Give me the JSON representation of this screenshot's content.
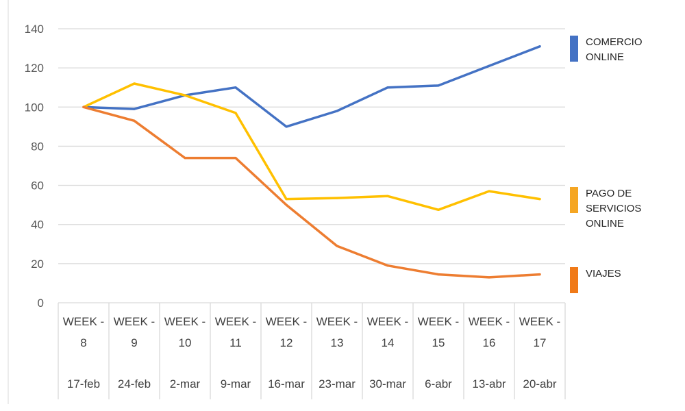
{
  "chart_data": {
    "type": "line",
    "categories": [
      [
        "WEEK -",
        "8",
        "17-feb"
      ],
      [
        "WEEK -",
        "9",
        "24-feb"
      ],
      [
        "WEEK -",
        "10",
        "2-mar"
      ],
      [
        "WEEK -",
        "11",
        "9-mar"
      ],
      [
        "WEEK -",
        "12",
        "16-mar"
      ],
      [
        "WEEK -",
        "13",
        "23-mar"
      ],
      [
        "WEEK -",
        "14",
        "30-mar"
      ],
      [
        "WEEK -",
        "15",
        "6-abr"
      ],
      [
        "WEEK -",
        "16",
        "13-abr"
      ],
      [
        "WEEK -",
        "17",
        "20-abr"
      ]
    ],
    "series": [
      {
        "key": "comercio",
        "name": "COMERCIO ONLINE",
        "label_lines": [
          "COMERCIO",
          "ONLINE"
        ],
        "color": "#4472c4",
        "values": [
          100,
          99,
          106,
          110,
          90,
          98,
          110,
          111,
          121,
          131
        ]
      },
      {
        "key": "pago",
        "name": "PAGO DE SERVICIOS ONLINE",
        "label_lines": [
          "PAGO DE",
          "SERVICIOS",
          "ONLINE"
        ],
        "color": "#ffc000",
        "legend_color": "#f5a623",
        "values": [
          100,
          112,
          106,
          97,
          53,
          53.5,
          54.5,
          47.5,
          57,
          53
        ]
      },
      {
        "key": "viajes",
        "name": "VIAJES",
        "label_lines": [
          "VIAJES"
        ],
        "color": "#ed7d31",
        "legend_color": "#f07a18",
        "values": [
          100,
          93,
          74,
          74,
          50,
          29,
          19,
          14.5,
          13,
          14.5
        ]
      }
    ],
    "yticks": [
      "0",
      "20",
      "40",
      "60",
      "80",
      "100",
      "120",
      "140"
    ],
    "ylim": [
      0,
      140
    ],
    "grid": true,
    "legend_position": "right",
    "colors": {
      "grid": "#d9d9d9",
      "axis_text": "#595959"
    }
  }
}
